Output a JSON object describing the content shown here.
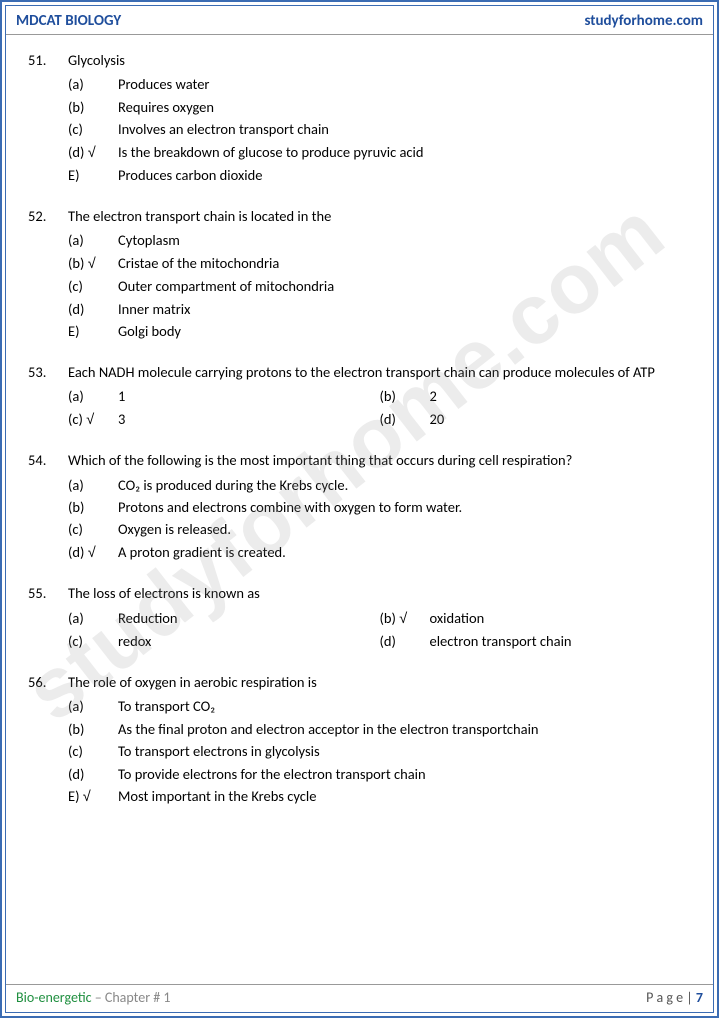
{
  "header": {
    "left": "MDCAT BIOLOGY",
    "right": "studyforhome.com"
  },
  "footer": {
    "chapter_green": "Bio-energetic",
    "chapter_gray": " – Chapter # 1",
    "page_label": "P a g e  | ",
    "page_num": "7"
  },
  "watermark": "studyforhome.com",
  "checkmark": "√",
  "questions": [
    {
      "num": "51.",
      "text": "Glycolysis",
      "layout": "v",
      "options": [
        {
          "l": "(a)",
          "c": false,
          "t": "Produces water"
        },
        {
          "l": "(b)",
          "c": false,
          "t": "Requires oxygen"
        },
        {
          "l": "(c)",
          "c": false,
          "t": "Involves an electron transport chain"
        },
        {
          "l": "(d)",
          "c": true,
          "t": "Is the breakdown of glucose to produce pyruvic acid"
        },
        {
          "l": "E)",
          "c": false,
          "t": "Produces carbon dioxide"
        }
      ]
    },
    {
      "num": "52.",
      "text": "The electron transport chain is located in the",
      "layout": "v",
      "options": [
        {
          "l": "(a)",
          "c": false,
          "t": "Cytoplasm"
        },
        {
          "l": "(b)",
          "c": true,
          "t": "Cristae of the mitochondria"
        },
        {
          "l": "(c)",
          "c": false,
          "t": "Outer compartment of mitochondria"
        },
        {
          "l": "(d)",
          "c": false,
          "t": "Inner matrix"
        },
        {
          "l": "E)",
          "c": false,
          "t": "Golgi body"
        }
      ]
    },
    {
      "num": "53.",
      "text": "Each NADH molecule carrying protons to the electron transport chain can produce molecules of ATP",
      "layout": "h",
      "justify": true,
      "options": [
        {
          "l": "(a)",
          "c": false,
          "t": "1"
        },
        {
          "l": "(b)",
          "c": false,
          "t": "2"
        },
        {
          "l": "(c)",
          "c": true,
          "t": "3"
        },
        {
          "l": "(d)",
          "c": false,
          "t": "20"
        }
      ]
    },
    {
      "num": "54.",
      "text": "Which of the following is the most important thing that occurs during cell respiration?",
      "layout": "v",
      "options": [
        {
          "l": "(a)",
          "c": false,
          "t": "CO₂ is produced during the Krebs cycle."
        },
        {
          "l": "(b)",
          "c": false,
          "t": "Protons and electrons combine with oxygen to form water."
        },
        {
          "l": "(c)",
          "c": false,
          "t": "Oxygen is released."
        },
        {
          "l": "(d)",
          "c": true,
          "t": "A proton gradient is created."
        }
      ]
    },
    {
      "num": "55.",
      "text": "The loss of electrons is known as",
      "layout": "h",
      "options": [
        {
          "l": "(a)",
          "c": false,
          "t": "Reduction"
        },
        {
          "l": "(b)",
          "c": true,
          "t": "oxidation"
        },
        {
          "l": "(c)",
          "c": false,
          "t": "redox"
        },
        {
          "l": "(d)",
          "c": false,
          "t": "electron transport chain"
        }
      ]
    },
    {
      "num": "56.",
      "text": "The role of oxygen in aerobic respiration is",
      "layout": "v",
      "options": [
        {
          "l": "(a)",
          "c": false,
          "t": "To transport CO₂"
        },
        {
          "l": "(b)",
          "c": false,
          "t": "As the final proton and electron acceptor in the electron transportchain"
        },
        {
          "l": "(c)",
          "c": false,
          "t": "To transport electrons in glycolysis"
        },
        {
          "l": "(d)",
          "c": false,
          "t": "To provide electrons for the electron transport chain"
        },
        {
          "l": "E)",
          "c": true,
          "t": "Most important in the Krebs cycle"
        }
      ]
    }
  ]
}
